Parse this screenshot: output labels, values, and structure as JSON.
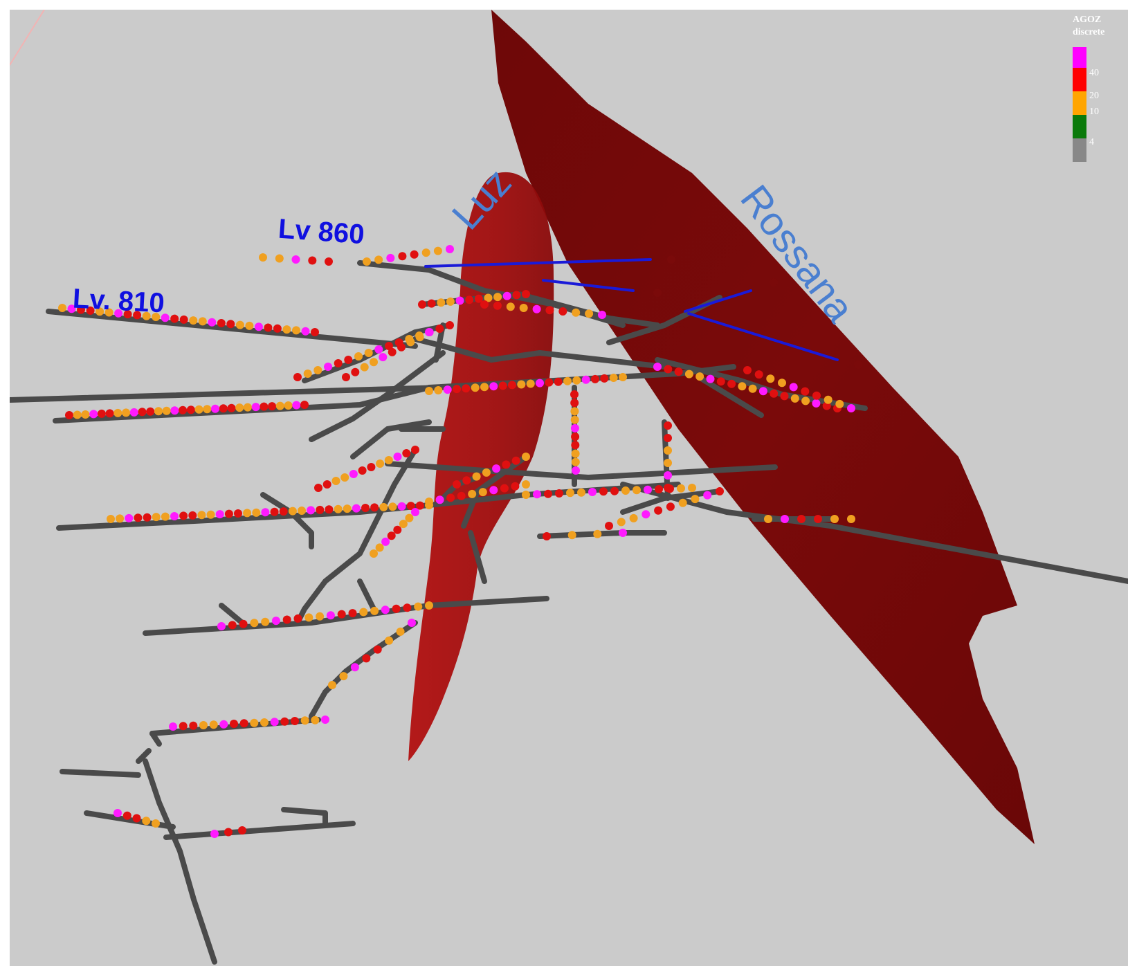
{
  "legend": {
    "title_line1": "AGOZ",
    "title_line2": "discrete",
    "ticks": [
      "40",
      "20",
      "10",
      "4"
    ],
    "colors": {
      "magenta": "#ff00ff",
      "red": "#ff0000",
      "orange": "#ffa500",
      "green": "#0a7a0a",
      "gray": "#888888"
    }
  },
  "labels": {
    "level_860": "Lv 860",
    "level_810": "Lv. 810",
    "vein_luz": "Luz",
    "vein_rossana": "Rossana"
  },
  "colors": {
    "background": "#cbcbcb",
    "tunnel": "#4a4a4a",
    "vein_surface": "#9a0d0d",
    "vein_surface_dark": "#6b0808",
    "drillhole": "#1a1ad8",
    "sample_magenta": "#ff1aff",
    "sample_red": "#e01010",
    "sample_orange": "#f0a020"
  }
}
